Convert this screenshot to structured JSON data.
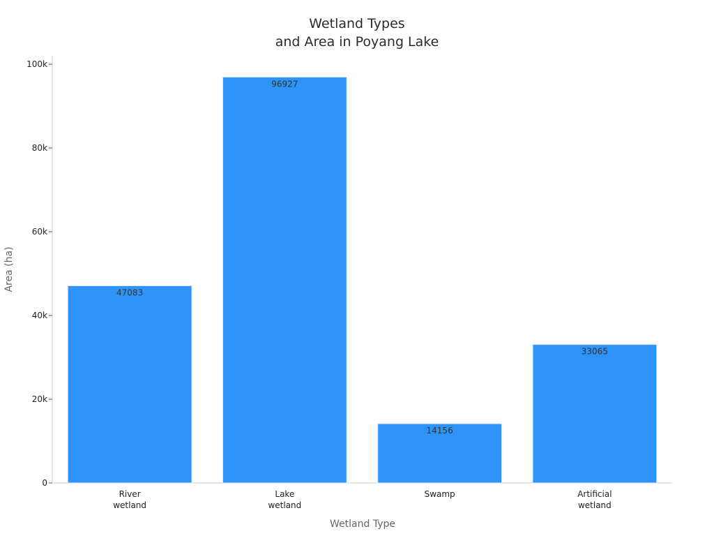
{
  "chart_data": {
    "type": "bar",
    "title": [
      "Wetland Types",
      "and Area in Poyang Lake"
    ],
    "xlabel": "Wetland Type",
    "ylabel": "Area (ha)",
    "categories": [
      [
        "River",
        "wetland"
      ],
      [
        "Lake",
        "wetland"
      ],
      [
        "Swamp"
      ],
      [
        "Artificial",
        "wetland"
      ]
    ],
    "values": [
      47083,
      96927,
      14156,
      33065
    ],
    "value_labels": [
      "47083",
      "96927",
      "14156",
      "33065"
    ],
    "yticks": [
      0,
      20000,
      40000,
      60000,
      80000,
      100000
    ],
    "ytick_labels": [
      "0",
      "20k",
      "40k",
      "60k",
      "80k",
      "100k"
    ],
    "ylim": [
      0,
      102000
    ],
    "grid": false,
    "bar_color": "#2e93fa"
  }
}
